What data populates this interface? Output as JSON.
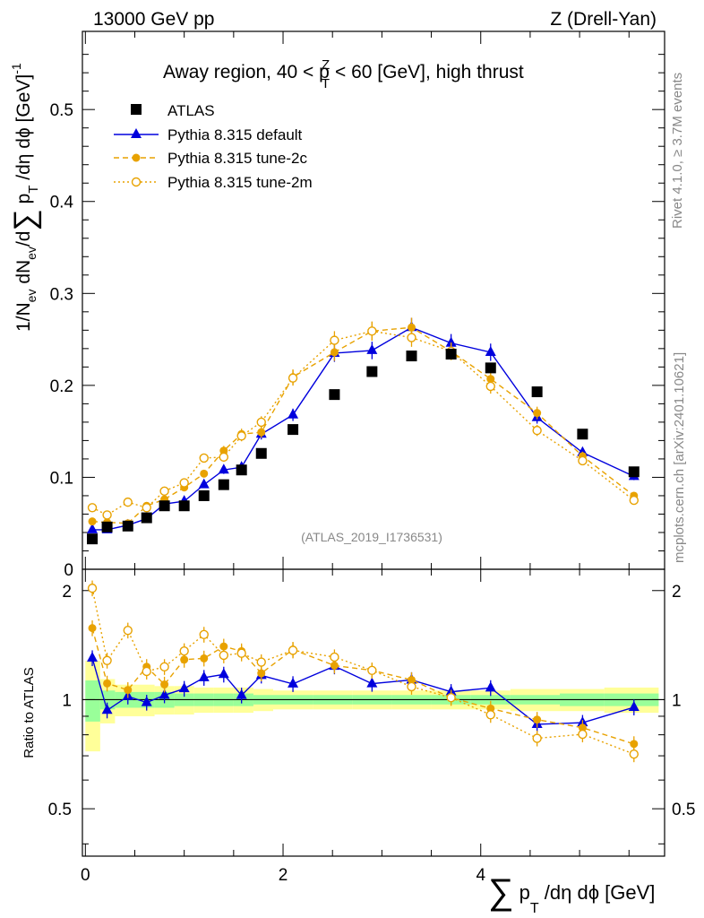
{
  "header": {
    "left": "13000 GeV pp",
    "right": "Z (Drell-Yan)"
  },
  "side_labels": {
    "rivet": "Rivet 4.1.0, ≥ 3.7M events",
    "mcplots": "mcplots.cern.ch [arXiv:2401.10621]"
  },
  "chart_data": {
    "type": "scatter",
    "title_parts": {
      "pre": "Away region, 40 < p",
      "sup": "Z",
      "sub": "T",
      "post": " < 60 [GeV], high thrust"
    },
    "watermark": "(ATLAS_2019_I1736531)",
    "ylabel_parts": {
      "a": "1/N",
      "a_sub": "ev",
      "b": " dN",
      "b_sub": "ev",
      "c": "/d",
      "sum": "∑",
      "d": " p",
      "d_sub": "T",
      "e": " /dη dϕ  [GeV]",
      "e_sup": "-1"
    },
    "xlabel_parts": {
      "sum": "∑",
      "a": " p",
      "a_sub": "T",
      "b": " /dη dϕ [GeV]"
    },
    "ratio_ylabel": "Ratio to ATLAS",
    "xlim": [
      -0.03,
      5.86
    ],
    "ylim": [
      0,
      0.585
    ],
    "ratio_ylim": [
      0.37,
      2.29
    ],
    "x_ticks": [
      {
        "v": 0,
        "label": "0"
      },
      {
        "v": 2,
        "label": "2"
      },
      {
        "v": 4,
        "label": "4"
      }
    ],
    "y_ticks": [
      {
        "v": 0,
        "label": "0"
      },
      {
        "v": 0.1,
        "label": "0.1"
      },
      {
        "v": 0.2,
        "label": "0.2"
      },
      {
        "v": 0.3,
        "label": "0.3"
      },
      {
        "v": 0.4,
        "label": "0.4"
      },
      {
        "v": 0.5,
        "label": "0.5"
      }
    ],
    "ratio_y_ticks": [
      {
        "v": 0.5,
        "label": "0.5"
      },
      {
        "v": 1,
        "label": "1"
      },
      {
        "v": 2,
        "label": "2"
      }
    ],
    "bins": [
      0,
      0.15,
      0.3,
      0.5,
      0.7,
      0.9,
      1.1,
      1.3,
      1.5,
      1.7,
      1.9,
      2.3,
      2.7,
      3.1,
      3.5,
      3.9,
      4.3,
      4.8,
      5.25,
      5.8
    ],
    "x": [
      0.07,
      0.22,
      0.43,
      0.62,
      0.8,
      1.0,
      1.2,
      1.4,
      1.58,
      1.78,
      2.1,
      2.52,
      2.9,
      3.3,
      3.7,
      4.1,
      4.57,
      5.03,
      5.55
    ],
    "atlas": [
      0.033,
      0.046,
      0.047,
      0.056,
      0.069,
      0.069,
      0.08,
      0.092,
      0.108,
      0.126,
      0.152,
      0.19,
      0.215,
      0.232,
      0.234,
      0.219,
      0.193,
      0.147,
      0.106
    ],
    "band_green": [
      0.13,
      0.06,
      0.05,
      0.05,
      0.05,
      0.04,
      0.04,
      0.04,
      0.04,
      0.03,
      0.03,
      0.03,
      0.03,
      0.03,
      0.03,
      0.03,
      0.03,
      0.04,
      0.04
    ],
    "band_yellow": [
      0.28,
      0.14,
      0.1,
      0.1,
      0.09,
      0.09,
      0.08,
      0.08,
      0.08,
      0.07,
      0.06,
      0.06,
      0.06,
      0.06,
      0.06,
      0.06,
      0.07,
      0.07,
      0.08
    ],
    "series": [
      {
        "name": "ATLAS",
        "color": "#000000",
        "marker": "square"
      },
      {
        "name": "Pythia 8.315 default",
        "color": "#0000dd",
        "marker": "triangle",
        "values": [
          0.043,
          0.043,
          0.048,
          0.055,
          0.071,
          0.074,
          0.092,
          0.108,
          0.111,
          0.147,
          0.168,
          0.235,
          0.238,
          0.263,
          0.246,
          0.236,
          0.165,
          0.127,
          0.101
        ]
      },
      {
        "name": "Pythia 8.315 tune-2c",
        "color": "#e8a200",
        "marker": "filled-circle",
        "dash": "6,4",
        "values": [
          0.052,
          0.051,
          0.05,
          0.069,
          0.076,
          0.089,
          0.104,
          0.129,
          0.147,
          0.149,
          0.209,
          0.236,
          0.259,
          0.263,
          0.237,
          0.207,
          0.17,
          0.123,
          0.08
        ]
      },
      {
        "name": "Pythia 8.315 tune-2m",
        "color": "#e8a200",
        "marker": "open-circle",
        "dash": "2,3",
        "values": [
          0.067,
          0.059,
          0.073,
          0.067,
          0.085,
          0.094,
          0.121,
          0.122,
          0.145,
          0.16,
          0.208,
          0.249,
          0.259,
          0.252,
          0.237,
          0.199,
          0.151,
          0.118,
          0.075
        ]
      }
    ]
  }
}
